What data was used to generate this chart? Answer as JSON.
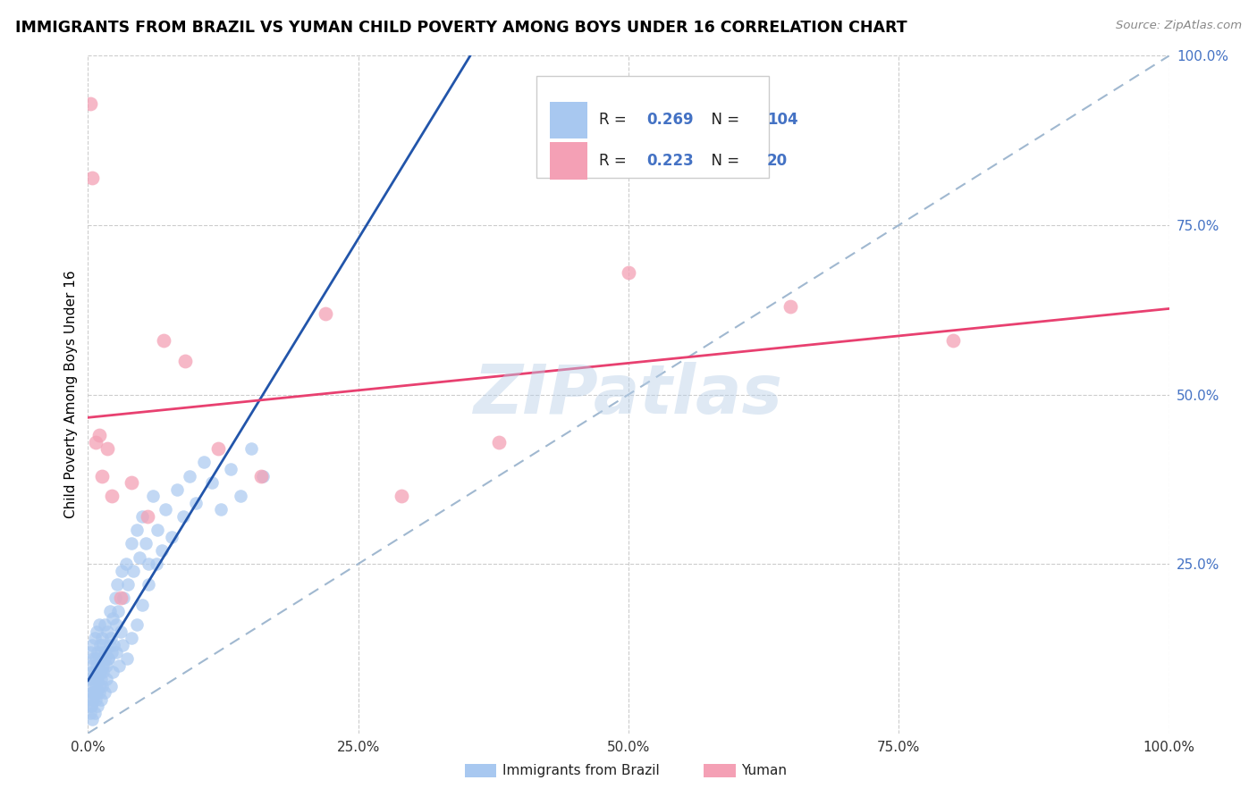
{
  "title": "IMMIGRANTS FROM BRAZIL VS YUMAN CHILD POVERTY AMONG BOYS UNDER 16 CORRELATION CHART",
  "source": "Source: ZipAtlas.com",
  "ylabel": "Child Poverty Among Boys Under 16",
  "xlim": [
    0.0,
    1.0
  ],
  "ylim": [
    0.0,
    1.0
  ],
  "xtick_labels": [
    "0.0%",
    "25.0%",
    "50.0%",
    "75.0%",
    "100.0%"
  ],
  "xtick_positions": [
    0.0,
    0.25,
    0.5,
    0.75,
    1.0
  ],
  "ytick_labels": [
    "25.0%",
    "50.0%",
    "75.0%",
    "100.0%"
  ],
  "ytick_positions": [
    0.25,
    0.5,
    0.75,
    1.0
  ],
  "blue_color": "#a8c8f0",
  "pink_color": "#f4a0b5",
  "blue_line_color": "#2255aa",
  "pink_line_color": "#e84070",
  "dash_color": "#a0b8d0",
  "R_blue": "0.269",
  "N_blue": "104",
  "R_pink": "0.223",
  "N_pink": "20",
  "watermark": "ZIPatlas",
  "legend_label_blue": "Immigrants from Brazil",
  "legend_label_pink": "Yuman",
  "blue_x": [
    0.001,
    0.002,
    0.002,
    0.003,
    0.003,
    0.003,
    0.004,
    0.004,
    0.004,
    0.005,
    0.005,
    0.005,
    0.006,
    0.006,
    0.006,
    0.007,
    0.007,
    0.008,
    0.008,
    0.008,
    0.009,
    0.009,
    0.01,
    0.01,
    0.01,
    0.011,
    0.011,
    0.012,
    0.012,
    0.013,
    0.013,
    0.014,
    0.014,
    0.015,
    0.015,
    0.016,
    0.017,
    0.018,
    0.019,
    0.02,
    0.02,
    0.021,
    0.022,
    0.023,
    0.024,
    0.025,
    0.026,
    0.027,
    0.028,
    0.03,
    0.031,
    0.033,
    0.035,
    0.037,
    0.04,
    0.042,
    0.045,
    0.048,
    0.05,
    0.053,
    0.056,
    0.06,
    0.064,
    0.068,
    0.072,
    0.077,
    0.082,
    0.088,
    0.094,
    0.1,
    0.107,
    0.115,
    0.123,
    0.132,
    0.141,
    0.151,
    0.162,
    0.002,
    0.003,
    0.004,
    0.005,
    0.006,
    0.007,
    0.008,
    0.009,
    0.01,
    0.011,
    0.012,
    0.013,
    0.014,
    0.015,
    0.017,
    0.019,
    0.021,
    0.023,
    0.026,
    0.029,
    0.032,
    0.036,
    0.04,
    0.045,
    0.05,
    0.056,
    0.063
  ],
  "blue_y": [
    0.05,
    0.08,
    0.12,
    0.04,
    0.07,
    0.1,
    0.06,
    0.09,
    0.13,
    0.05,
    0.08,
    0.11,
    0.06,
    0.09,
    0.14,
    0.07,
    0.11,
    0.06,
    0.1,
    0.15,
    0.08,
    0.12,
    0.07,
    0.11,
    0.16,
    0.09,
    0.13,
    0.08,
    0.12,
    0.1,
    0.14,
    0.09,
    0.13,
    0.11,
    0.16,
    0.12,
    0.1,
    0.15,
    0.11,
    0.13,
    0.18,
    0.14,
    0.12,
    0.17,
    0.13,
    0.2,
    0.16,
    0.22,
    0.18,
    0.15,
    0.24,
    0.2,
    0.25,
    0.22,
    0.28,
    0.24,
    0.3,
    0.26,
    0.32,
    0.28,
    0.25,
    0.35,
    0.3,
    0.27,
    0.33,
    0.29,
    0.36,
    0.32,
    0.38,
    0.34,
    0.4,
    0.37,
    0.33,
    0.39,
    0.35,
    0.42,
    0.38,
    0.03,
    0.04,
    0.02,
    0.06,
    0.03,
    0.05,
    0.08,
    0.04,
    0.06,
    0.09,
    0.05,
    0.07,
    0.1,
    0.06,
    0.08,
    0.11,
    0.07,
    0.09,
    0.12,
    0.1,
    0.13,
    0.11,
    0.14,
    0.16,
    0.19,
    0.22,
    0.25
  ],
  "pink_x": [
    0.002,
    0.004,
    0.007,
    0.01,
    0.013,
    0.018,
    0.022,
    0.03,
    0.04,
    0.055,
    0.07,
    0.09,
    0.12,
    0.16,
    0.22,
    0.29,
    0.38,
    0.5,
    0.65,
    0.8
  ],
  "pink_y": [
    0.93,
    0.82,
    0.43,
    0.44,
    0.38,
    0.42,
    0.35,
    0.2,
    0.37,
    0.32,
    0.58,
    0.55,
    0.42,
    0.38,
    0.62,
    0.35,
    0.43,
    0.68,
    0.63,
    0.58
  ]
}
